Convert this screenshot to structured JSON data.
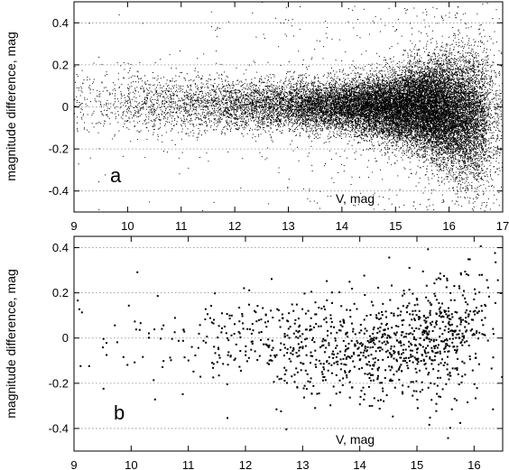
{
  "chart_data": [
    {
      "type": "scatter",
      "panel_label": "a",
      "xlabel": "V, mag",
      "ylabel": "magnitude difference, mag",
      "xlim": [
        9,
        17
      ],
      "ylim": [
        -0.5,
        0.5
      ],
      "x_ticks": [
        9,
        10,
        11,
        12,
        13,
        14,
        15,
        16,
        17
      ],
      "x_tick_labels": [
        "9",
        "10",
        "11",
        "12",
        "13",
        "14",
        "15",
        "16",
        "17"
      ],
      "y_ticks": [
        -0.4,
        -0.2,
        0,
        0.2,
        0.4
      ],
      "y_tick_labels": [
        "-0.4",
        "-0.2",
        "0",
        "0.2",
        "0.4"
      ],
      "grid": "horizontal dotted at y ticks",
      "marker_color": "#000000",
      "point_count_estimate": 60000,
      "distribution": {
        "density_by_V": [
          {
            "x": 9.2,
            "relative_density": 0.02
          },
          {
            "x": 10.0,
            "relative_density": 0.04
          },
          {
            "x": 11.0,
            "relative_density": 0.07
          },
          {
            "x": 12.0,
            "relative_density": 0.12
          },
          {
            "x": 13.0,
            "relative_density": 0.2
          },
          {
            "x": 14.0,
            "relative_density": 0.38
          },
          {
            "x": 15.0,
            "relative_density": 0.7
          },
          {
            "x": 15.8,
            "relative_density": 1.0
          },
          {
            "x": 16.5,
            "relative_density": 0.6
          },
          {
            "x": 16.8,
            "relative_density": 0.1
          }
        ],
        "spread_by_V": [
          {
            "x": 9.2,
            "sigma": 0.08
          },
          {
            "x": 12.0,
            "sigma": 0.06
          },
          {
            "x": 14.0,
            "sigma": 0.06
          },
          {
            "x": 15.0,
            "sigma": 0.08
          },
          {
            "x": 16.0,
            "sigma": 0.13
          },
          {
            "x": 16.8,
            "sigma": 0.17
          }
        ],
        "mean_by_V": [
          {
            "x": 9.2,
            "mean": 0.02
          },
          {
            "x": 15.5,
            "mean": 0.0
          },
          {
            "x": 16.5,
            "mean": -0.05
          }
        ]
      }
    },
    {
      "type": "scatter",
      "panel_label": "b",
      "xlabel": "V, mag",
      "ylabel": "magnitude difference, mag",
      "xlim": [
        9,
        16.5
      ],
      "ylim": [
        -0.5,
        0.45
      ],
      "x_ticks": [
        9,
        10,
        11,
        12,
        13,
        14,
        15,
        16
      ],
      "x_tick_labels": [
        "9",
        "10",
        "11",
        "12",
        "13",
        "14",
        "15",
        "16"
      ],
      "y_ticks": [
        -0.4,
        -0.2,
        0,
        0.2,
        0.4
      ],
      "y_tick_labels": [
        "-0.4",
        "-0.2",
        "0",
        "0.2",
        "0.4"
      ],
      "grid": "horizontal dotted at y ticks",
      "marker_color": "#000000",
      "point_count_estimate": 1100,
      "highlighted_points": [
        {
          "x": 9.05,
          "y": 0.17
        },
        {
          "x": 9.1,
          "y": -0.12
        },
        {
          "x": 9.25,
          "y": -0.12
        },
        {
          "x": 9.5,
          "y": -0.22
        },
        {
          "x": 9.5,
          "y": 0.0
        },
        {
          "x": 9.7,
          "y": 0.06
        },
        {
          "x": 9.85,
          "y": -0.08
        },
        {
          "x": 10.15,
          "y": 0.07
        },
        {
          "x": 10.45,
          "y": 0.19
        },
        {
          "x": 10.55,
          "y": 0.06
        },
        {
          "x": 10.7,
          "y": 0.0
        },
        {
          "x": 10.9,
          "y": 0.04
        },
        {
          "x": 12.7,
          "y": -0.4
        },
        {
          "x": 15.2,
          "y": -0.38
        },
        {
          "x": 16.1,
          "y": 0.41
        },
        {
          "x": 16.35,
          "y": 0.38
        },
        {
          "x": 16.4,
          "y": 0.26
        },
        {
          "x": 14.5,
          "y": 0.36
        }
      ],
      "distribution": {
        "density_by_V": [
          {
            "x": 9.0,
            "relative_density": 0.03
          },
          {
            "x": 10.0,
            "relative_density": 0.04
          },
          {
            "x": 11.0,
            "relative_density": 0.12
          },
          {
            "x": 12.0,
            "relative_density": 0.3
          },
          {
            "x": 13.0,
            "relative_density": 0.45
          },
          {
            "x": 14.0,
            "relative_density": 0.7
          },
          {
            "x": 15.0,
            "relative_density": 1.0
          },
          {
            "x": 15.8,
            "relative_density": 0.95
          },
          {
            "x": 16.1,
            "relative_density": 0.4
          },
          {
            "x": 16.4,
            "relative_density": 0.05
          }
        ],
        "spread_by_V": [
          {
            "x": 9.0,
            "sigma": 0.1
          },
          {
            "x": 12.0,
            "sigma": 0.1
          },
          {
            "x": 14.0,
            "sigma": 0.11
          },
          {
            "x": 15.0,
            "sigma": 0.12
          },
          {
            "x": 16.0,
            "sigma": 0.15
          }
        ],
        "mean_by_V": [
          {
            "x": 9.0,
            "mean": 0.0
          },
          {
            "x": 14.5,
            "mean": -0.04
          },
          {
            "x": 16.0,
            "mean": 0.05
          }
        ]
      }
    }
  ]
}
